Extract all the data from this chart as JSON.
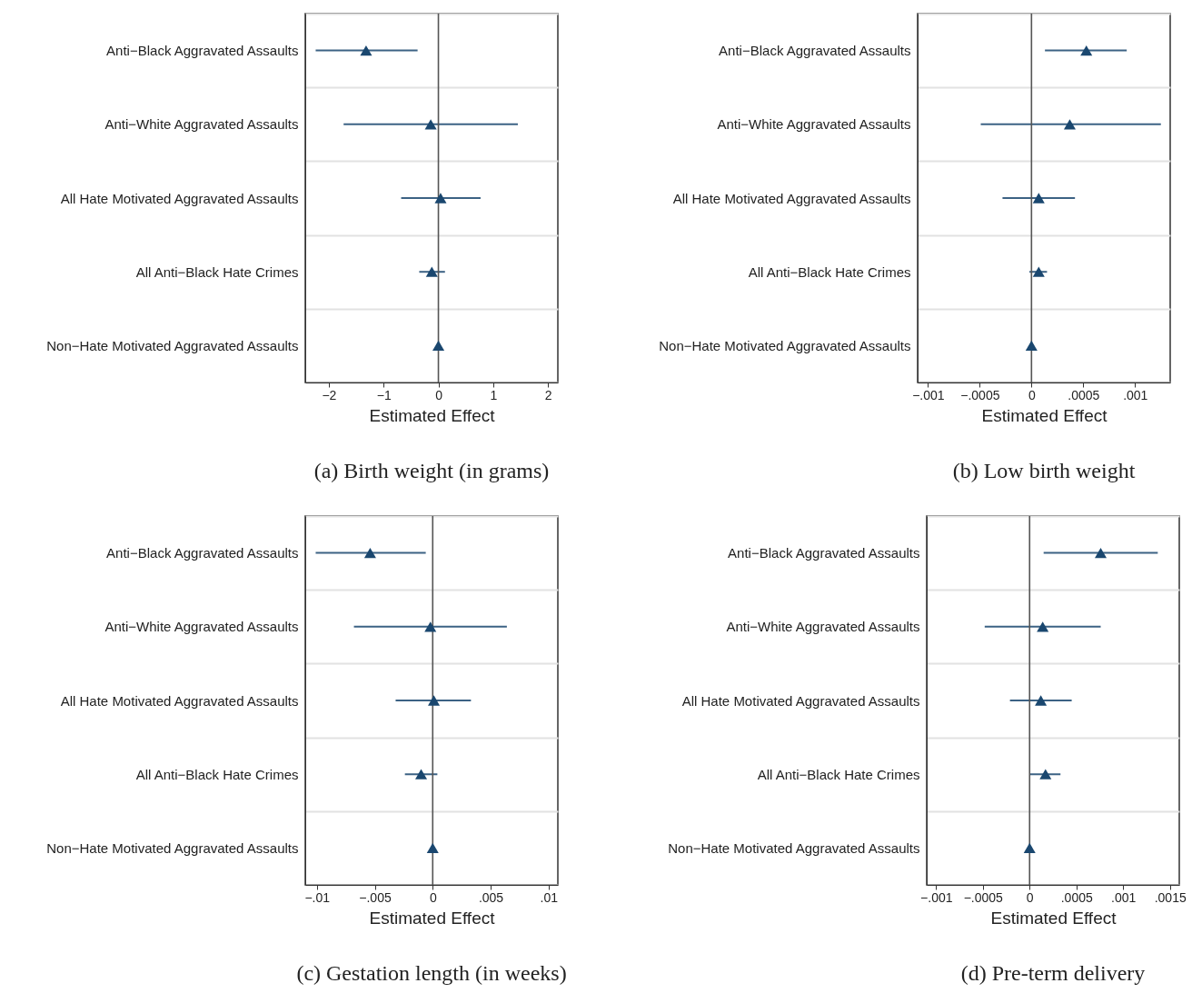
{
  "chart_data": [
    {
      "type": "scatter",
      "orientation": "horizontal",
      "title": "(a) Birth weight (in grams)",
      "xlabel": "Estimated Effect",
      "categories": [
        "Anti−Black Aggravated Assaults",
        "Anti−White Aggravated Assaults",
        "All Hate Motivated Aggravated Assaults",
        "All Anti−Black Hate Crimes",
        "Non−Hate Motivated Aggravated Assaults"
      ],
      "color": "#1a476f",
      "marker": "triangle",
      "grid": "y",
      "values": [
        -1.32,
        -0.14,
        0.04,
        -0.12,
        0
      ],
      "errors": [
        [
          -2.24,
          -0.38
        ],
        [
          -1.73,
          1.45
        ],
        [
          -0.68,
          0.77
        ],
        [
          -0.35,
          0.12
        ],
        null
      ],
      "xlim": [
        -2.43,
        2.18
      ],
      "xticks": [
        {
          "value": -2,
          "label": "−2"
        },
        {
          "value": -1,
          "label": "−1"
        },
        0,
        1,
        2
      ],
      "ref_lines": [
        {
          "axis": "x",
          "value": 0
        }
      ]
    },
    {
      "type": "scatter",
      "orientation": "horizontal",
      "title": "(b) Low birth weight",
      "xlabel": "Estimated Effect",
      "categories": [
        "Anti−Black Aggravated Assaults",
        "Anti−White Aggravated Assaults",
        "All Hate Motivated Aggravated Assaults",
        "All Anti−Black Hate Crimes",
        "Non−Hate Motivated Aggravated Assaults"
      ],
      "color": "#1a476f",
      "marker": "triangle",
      "grid": "y",
      "values": [
        0.00053,
        0.00037,
        7e-05,
        7e-05,
        0
      ],
      "errors": [
        [
          0.00013,
          0.00092
        ],
        [
          -0.00049,
          0.00125
        ],
        [
          -0.00028,
          0.00042
        ],
        [
          -2e-05,
          0.00015
        ],
        null
      ],
      "xlim": [
        -0.0011,
        0.00134
      ],
      "xticks": [
        {
          "value": -0.001,
          "label": "−.001"
        },
        {
          "value": -0.0005,
          "label": "−.0005"
        },
        0,
        {
          "value": 0.0005,
          "label": ".0005"
        },
        {
          "value": 0.001,
          "label": ".001"
        }
      ],
      "ref_lines": [
        {
          "axis": "x",
          "value": 0
        }
      ]
    },
    {
      "type": "scatter",
      "orientation": "horizontal",
      "title": "(c) Gestation length (in weeks)",
      "xlabel": "Estimated Effect",
      "categories": [
        "Anti−Black Aggravated Assaults",
        "Anti−White Aggravated Assaults",
        "All Hate Motivated Aggravated Assaults",
        "All Anti−Black Hate Crimes",
        "Non−Hate Motivated Aggravated Assaults"
      ],
      "color": "#1a476f",
      "marker": "triangle",
      "grid": "y",
      "values": [
        -0.0054,
        -0.0002,
        0.0001,
        -0.001,
        0
      ],
      "errors": [
        [
          -0.0101,
          -0.0006
        ],
        [
          -0.0068,
          0.0064
        ],
        [
          -0.0032,
          0.0033
        ],
        [
          -0.0024,
          0.0004
        ],
        null
      ],
      "xlim": [
        -0.011,
        0.0108
      ],
      "xticks": [
        {
          "value": -0.01,
          "label": "−.01"
        },
        {
          "value": -0.005,
          "label": "−.005"
        },
        0,
        {
          "value": 0.005,
          "label": ".005"
        },
        {
          "value": 0.01,
          "label": ".01"
        }
      ],
      "ref_lines": [
        {
          "axis": "x",
          "value": 0
        }
      ]
    },
    {
      "type": "scatter",
      "orientation": "horizontal",
      "title": "(d) Pre-term delivery",
      "xlabel": "Estimated Effect",
      "categories": [
        "Anti−Black Aggravated Assaults",
        "Anti−White Aggravated Assaults",
        "All Hate Motivated Aggravated Assaults",
        "All Anti−Black Hate Crimes",
        "Non−Hate Motivated Aggravated Assaults"
      ],
      "color": "#1a476f",
      "marker": "triangle",
      "grid": "y",
      "values": [
        0.00076,
        0.00014,
        0.00012,
        0.00017,
        0
      ],
      "errors": [
        [
          0.00015,
          0.00137
        ],
        [
          -0.00048,
          0.00076
        ],
        [
          -0.00021,
          0.00045
        ],
        [
          0,
          0.00033
        ],
        null
      ],
      "xlim": [
        -0.0011,
        0.0016
      ],
      "xticks": [
        {
          "value": -0.001,
          "label": "−.001"
        },
        {
          "value": -0.0005,
          "label": "−.0005"
        },
        0,
        {
          "value": 0.0005,
          "label": ".0005"
        },
        {
          "value": 0.001,
          "label": ".001"
        },
        {
          "value": 0.0015,
          "label": ".0015"
        }
      ],
      "ref_lines": [
        {
          "axis": "x",
          "value": 0
        }
      ]
    }
  ]
}
